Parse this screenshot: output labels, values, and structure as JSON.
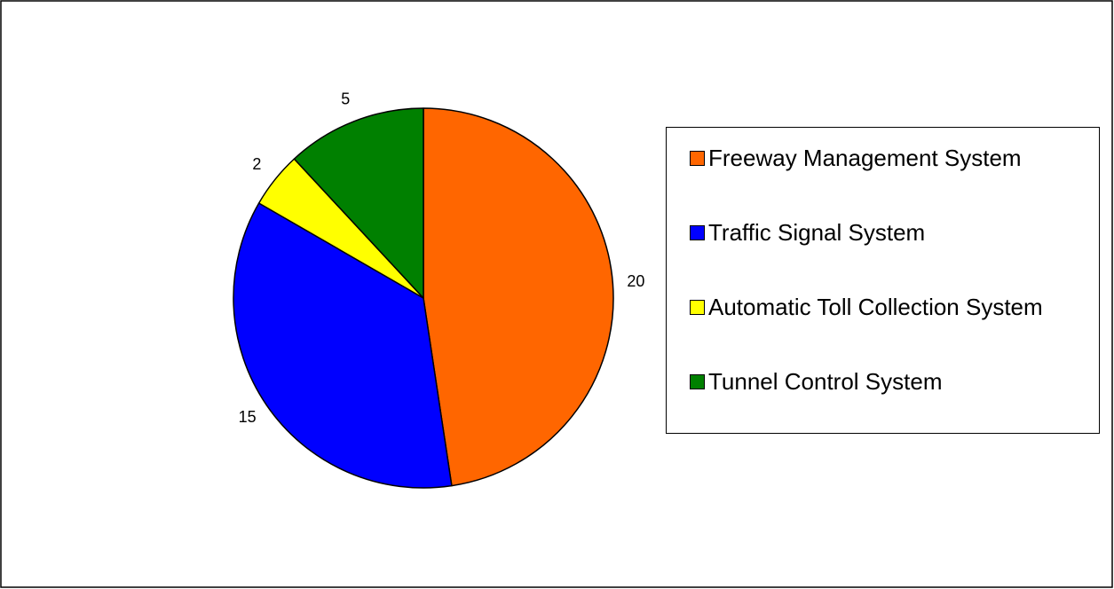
{
  "chart_data": {
    "type": "pie",
    "categories": [
      "Freeway Management System",
      "Traffic Signal System",
      "Automatic Toll Collection System",
      "Tunnel Control System"
    ],
    "values": [
      20,
      15,
      2,
      5
    ],
    "colors": [
      "#ff6600",
      "#0000ff",
      "#ffff00",
      "#008000"
    ],
    "legend": "right"
  }
}
